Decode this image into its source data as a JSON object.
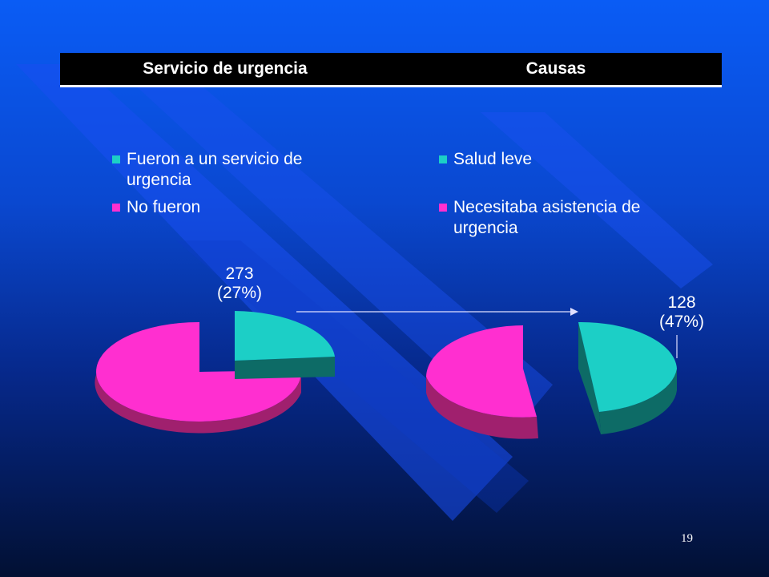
{
  "header": {
    "col1": "Servicio de urgencia",
    "col2": "Causas"
  },
  "colors": {
    "teal": "#1ccfc6",
    "teal_side": "#0d6b66",
    "magenta": "#ff2fd0",
    "magenta_side": "#a0206e"
  },
  "chart_data": [
    {
      "type": "pie",
      "title": "",
      "legend": {
        "placement": "top",
        "entries": [
          "Fueron a un servicio de urgencia",
          "No fueron"
        ]
      },
      "slices": [
        {
          "label": "Fueron a un servicio de urgencia",
          "value": 273,
          "percent": 27,
          "display": "273",
          "display_pct": "(27%)",
          "color": "#1ccfc6"
        },
        {
          "label": "No fueron",
          "percent": 73,
          "color": "#ff2fd0"
        }
      ]
    },
    {
      "type": "pie",
      "title": "",
      "legend": {
        "placement": "top",
        "entries": [
          "Salud leve",
          "Necesitaba asistencia de urgencia"
        ]
      },
      "slices": [
        {
          "label": "Salud leve",
          "value": 128,
          "percent": 47,
          "display": "128",
          "display_pct": "(47%)",
          "color": "#1ccfc6"
        },
        {
          "label": "Necesitaba asistencia de urgencia",
          "percent": 53,
          "color": "#ff2fd0"
        }
      ]
    }
  ],
  "page_number": "19"
}
